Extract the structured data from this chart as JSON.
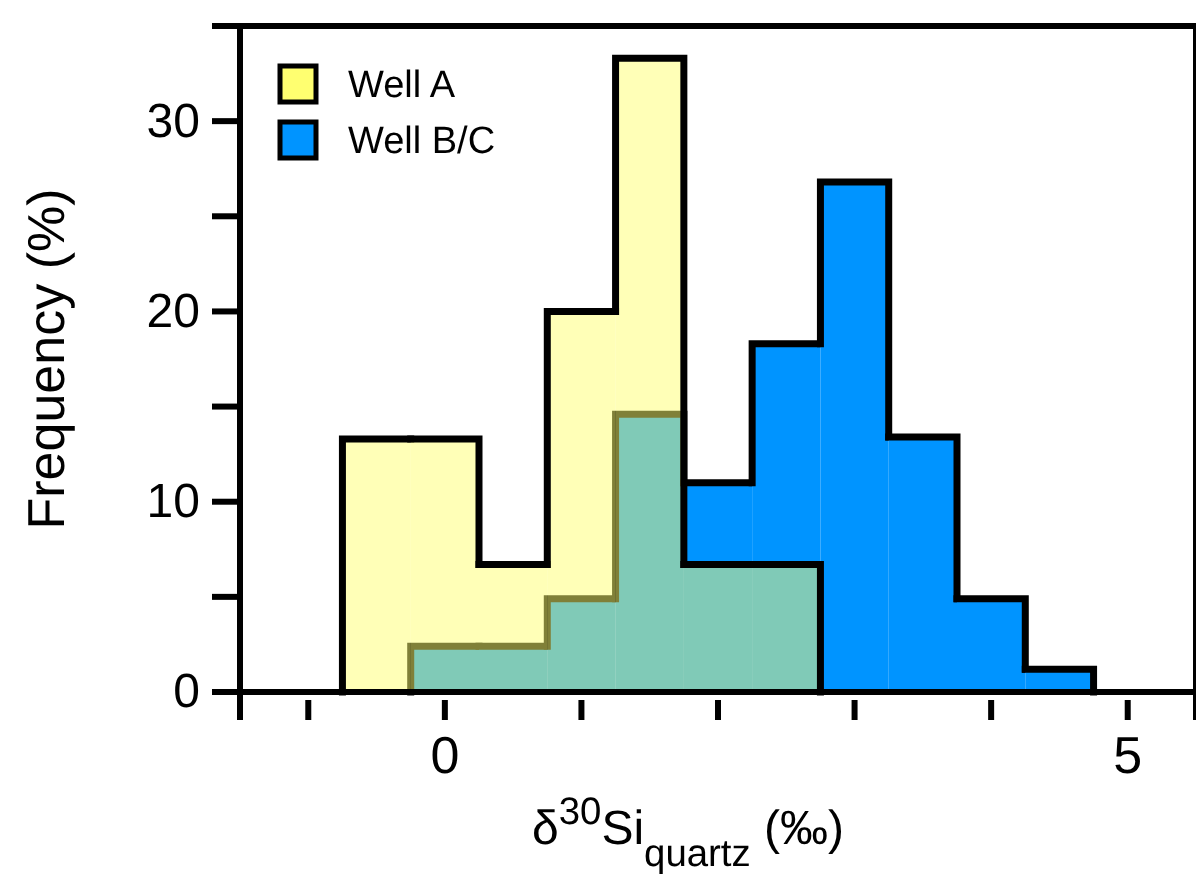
{
  "chart_data": {
    "type": "histogram",
    "xlabel": "δ$^{30}$Si$_{quartz}$ (‰)",
    "ylabel": "Frequency (%)",
    "xlim": [
      -1.5,
      5.5
    ],
    "xticks": [
      {
        "value": -1,
        "label": null
      },
      0,
      {
        "value": 1,
        "label": null
      },
      {
        "value": 2,
        "label": null
      },
      {
        "value": 3,
        "label": null
      },
      {
        "value": 4,
        "label": null
      },
      5
    ],
    "ylim": [
      0,
      35
    ],
    "yticks": [
      0,
      {
        "value": 5,
        "label": null
      },
      10,
      {
        "value": 15,
        "label": null
      },
      20,
      {
        "value": 25,
        "label": null
      },
      30
    ],
    "legend": "top left",
    "grid": false,
    "bins": [
      -0.75,
      -0.25,
      0.25,
      0.75,
      1.25,
      1.75,
      2.25,
      2.75,
      3.25,
      3.75,
      4.25,
      4.75
    ],
    "series": [
      {
        "name": "Well A",
        "color": "#ffff70",
        "values": [
          13.3,
          13.3,
          6.7,
          20,
          33.3,
          6.7,
          6.7,
          null,
          null,
          null,
          null
        ]
      },
      {
        "name": "Well B/C",
        "color": "#0094ff",
        "values": [
          null,
          2.4,
          2.4,
          4.9,
          14.6,
          11,
          18.3,
          26.8,
          13.4,
          4.9,
          1.2
        ]
      }
    ]
  }
}
